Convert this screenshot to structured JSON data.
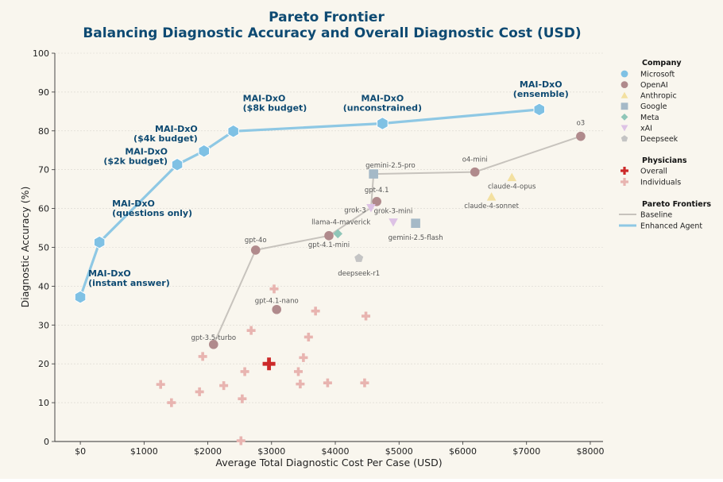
{
  "chart_data": {
    "type": "scatter",
    "title": "Pareto Frontier",
    "subtitle": "Balancing Diagnostic Accuracy and Overall Diagnostic Cost (USD)",
    "xlabel": "Average Total Diagnostic Cost Per Case (USD)",
    "ylabel": "Diagnostic Accuracy (%)",
    "xlim": [
      -400,
      8200
    ],
    "ylim": [
      0,
      100
    ],
    "x_ticks": [
      0,
      1000,
      2000,
      3000,
      4000,
      5000,
      6000,
      7000,
      8000
    ],
    "x_tick_labels": [
      "$0",
      "$1000",
      "$2000",
      "$3000",
      "$4000",
      "$5000",
      "$6000",
      "$7000",
      "$8000"
    ],
    "y_ticks": [
      0,
      10,
      20,
      30,
      40,
      50,
      60,
      70,
      80,
      90,
      100
    ],
    "grid": "horizontal",
    "colors": {
      "Microsoft": "#7fc1e4",
      "OpenAI": "#b08a8c",
      "Anthropic": "#f3e0a0",
      "Google": "#a5b9c7",
      "Meta": "#8fc6b8",
      "xAI": "#ddc2e5",
      "Deepseek": "#c4c4c4",
      "physician": "#e8b4b0",
      "overall": "#cc2a2a",
      "baseline_line": "#c7c3bd",
      "enhanced_line": "#8ec8e4",
      "background": "#f9f6ee",
      "title": "#0e4a72"
    },
    "enhanced_agent": [
      {
        "label": "MAI-DxO\n(instant answer)",
        "x": 0,
        "y": 37.2
      },
      {
        "label": "MAI-DxO\n(questions only)",
        "x": 300,
        "y": 51.3
      },
      {
        "label": "MAI-DxO\n($2k budget)",
        "x": 1520,
        "y": 71.3
      },
      {
        "label": "MAI-DxO\n($4k budget)",
        "x": 1940,
        "y": 74.8
      },
      {
        "label": "MAI-DxO\n($8k budget)",
        "x": 2400,
        "y": 79.9
      },
      {
        "label": "MAI-DxO\n(unconstrained)",
        "x": 4740,
        "y": 81.9
      },
      {
        "label": "MAI-DxO\n(ensemble)",
        "x": 7200,
        "y": 85.5
      }
    ],
    "models": [
      {
        "name": "gpt-3.5-turbo",
        "company": "OpenAI",
        "x": 2090,
        "y": 25.0
      },
      {
        "name": "gpt-4o",
        "company": "OpenAI",
        "x": 2750,
        "y": 49.3
      },
      {
        "name": "gpt-4.1-nano",
        "company": "OpenAI",
        "x": 3080,
        "y": 34.0
      },
      {
        "name": "gpt-4.1-mini",
        "company": "OpenAI",
        "x": 3900,
        "y": 53.0
      },
      {
        "name": "gpt-4.1",
        "company": "OpenAI",
        "x": 4650,
        "y": 61.8
      },
      {
        "name": "o4-mini",
        "company": "OpenAI",
        "x": 6190,
        "y": 69.4
      },
      {
        "name": "o3",
        "company": "OpenAI",
        "x": 7850,
        "y": 78.6
      },
      {
        "name": "claude-4-sonnet",
        "company": "Anthropic",
        "x": 6450,
        "y": 63.0
      },
      {
        "name": "claude-4-opus",
        "company": "Anthropic",
        "x": 6770,
        "y": 68.0
      },
      {
        "name": "gemini-2.5-pro",
        "company": "Google",
        "x": 4600,
        "y": 68.9
      },
      {
        "name": "gemini-2.5-flash",
        "company": "Google",
        "x": 5260,
        "y": 56.2
      },
      {
        "name": "llama-4-maverick",
        "company": "Meta",
        "x": 4040,
        "y": 53.5
      },
      {
        "name": "grok-3",
        "company": "xAI",
        "x": 4560,
        "y": 60.2
      },
      {
        "name": "grok-3-mini",
        "company": "xAI",
        "x": 4910,
        "y": 56.5
      },
      {
        "name": "deepseek-r1",
        "company": "Deepseek",
        "x": 4370,
        "y": 47.2
      }
    ],
    "baseline_frontier": [
      "gpt-3.5-turbo",
      "gpt-4o",
      "gpt-4.1-mini",
      "grok-3",
      "gemini-2.5-pro",
      "o4-mini",
      "o3"
    ],
    "physicians_overall": {
      "x": 2960,
      "y": 20.0
    },
    "physicians_individuals": [
      {
        "x": 1260,
        "y": 14.7
      },
      {
        "x": 1430,
        "y": 10.0
      },
      {
        "x": 1870,
        "y": 12.8
      },
      {
        "x": 1920,
        "y": 21.9
      },
      {
        "x": 2250,
        "y": 14.4
      },
      {
        "x": 2520,
        "y": 0.2
      },
      {
        "x": 2540,
        "y": 11.0
      },
      {
        "x": 2580,
        "y": 18.0
      },
      {
        "x": 2680,
        "y": 28.6
      },
      {
        "x": 3040,
        "y": 39.3
      },
      {
        "x": 3420,
        "y": 18.0
      },
      {
        "x": 3450,
        "y": 14.8
      },
      {
        "x": 3500,
        "y": 21.6
      },
      {
        "x": 3580,
        "y": 26.9
      },
      {
        "x": 3690,
        "y": 33.6
      },
      {
        "x": 3880,
        "y": 15.1
      },
      {
        "x": 4460,
        "y": 15.1
      },
      {
        "x": 4480,
        "y": 32.3
      }
    ],
    "legend": {
      "placement": "right",
      "company_title": "Company",
      "companies": [
        "Microsoft",
        "OpenAI",
        "Anthropic",
        "Google",
        "Meta",
        "xAI",
        "Deepseek"
      ],
      "physicians_title": "Physicians",
      "physicians_items": [
        "Overall",
        "Individuals"
      ],
      "frontiers_title": "Pareto Frontiers",
      "frontiers_items": [
        "Baseline",
        "Enhanced Agent"
      ]
    }
  }
}
